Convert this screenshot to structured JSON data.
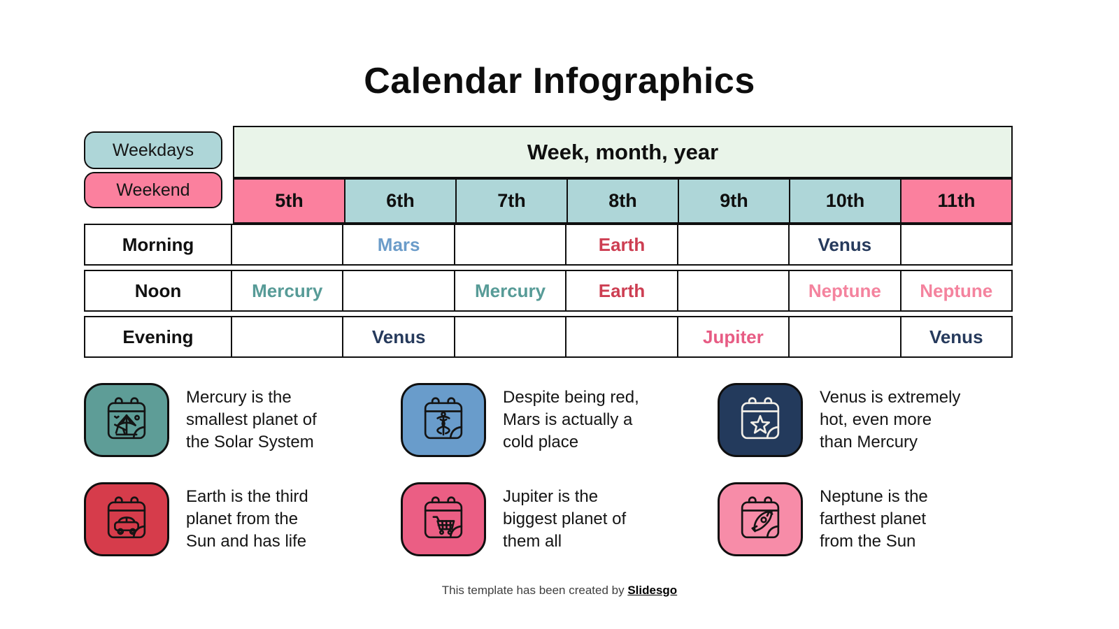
{
  "title": "Calendar Infographics",
  "legend": {
    "weekdays_label": "Weekdays",
    "weekend_label": "Weekend"
  },
  "colors": {
    "border": "#0f0f0f",
    "weekday_fill": "#aed6d8",
    "weekend_fill": "#fb809e",
    "header_fill": "#e9f4e9",
    "background": "#ffffff"
  },
  "table": {
    "header": "Week, month, year",
    "day_columns": [
      {
        "label": "5th",
        "type": "weekend"
      },
      {
        "label": "6th",
        "type": "weekday"
      },
      {
        "label": "7th",
        "type": "weekday"
      },
      {
        "label": "8th",
        "type": "weekday"
      },
      {
        "label": "9th",
        "type": "weekday"
      },
      {
        "label": "10th",
        "type": "weekday"
      },
      {
        "label": "11th",
        "type": "weekend"
      }
    ],
    "rows": [
      {
        "label": "Morning",
        "cells": [
          "",
          "Mars",
          "",
          "Earth",
          "",
          "Venus",
          ""
        ]
      },
      {
        "label": "Noon",
        "cells": [
          "Mercury",
          "",
          "Mercury",
          "Earth",
          "",
          "Neptune",
          "Neptune"
        ]
      },
      {
        "label": "Evening",
        "cells": [
          "",
          "Venus",
          "",
          "",
          "Jupiter",
          "",
          "Venus"
        ]
      }
    ]
  },
  "planet_colors": {
    "Mercury": "#579b97",
    "Mars": "#6b9cc9",
    "Earth": "#cd3e52",
    "Venus": "#263a5c",
    "Jupiter": "#e75c84",
    "Neptune": "#f4839e"
  },
  "cards": [
    {
      "icon": "beach-umbrella-calendar-icon",
      "bg": "#5e9d97",
      "stroke": "#141414",
      "text": "Mercury is the\nsmallest planet of\nthe Solar System"
    },
    {
      "icon": "caduceus-calendar-icon",
      "bg": "#699ccb",
      "stroke": "#141414",
      "text": "Despite being red,\nMars is actually a\ncold place"
    },
    {
      "icon": "star-calendar-icon",
      "bg": "#233a5c",
      "stroke": "#f2efe8",
      "text": "Venus is extremely\nhot, even more\nthan Mercury"
    },
    {
      "icon": "car-calendar-icon",
      "bg": "#d63c4b",
      "stroke": "#141414",
      "text": "Earth is the third\nplanet from the\nSun and has life"
    },
    {
      "icon": "shopping-cart-calendar-icon",
      "bg": "#eb5e84",
      "stroke": "#141414",
      "text": "Jupiter is the\nbiggest planet of\nthem all"
    },
    {
      "icon": "rocket-calendar-icon",
      "bg": "#f78ca8",
      "stroke": "#141414",
      "text": "Neptune is the\nfarthest planet\nfrom the Sun"
    }
  ],
  "footer": {
    "text": "This template has been created by ",
    "brand": "Slidesgo"
  }
}
